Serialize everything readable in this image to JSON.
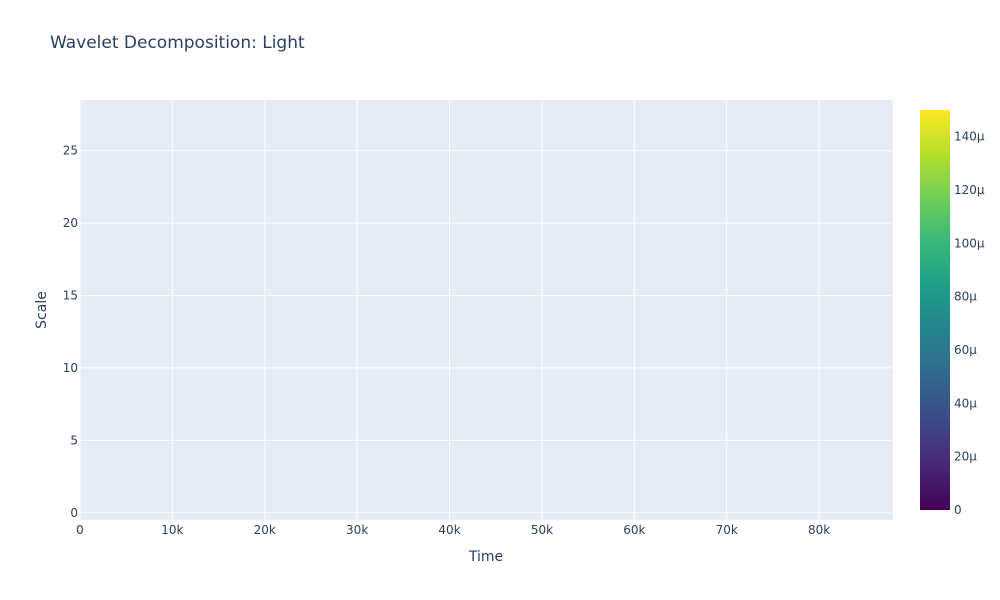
{
  "chart_data": {
    "type": "heatmap",
    "title": "Wavelet Decomposition: Light",
    "xlabel": "Time",
    "ylabel": "Scale",
    "x_ticks": [
      {
        "value": 0,
        "label": "0"
      },
      {
        "value": 10000,
        "label": "10k"
      },
      {
        "value": 20000,
        "label": "20k"
      },
      {
        "value": 30000,
        "label": "30k"
      },
      {
        "value": 40000,
        "label": "40k"
      },
      {
        "value": 50000,
        "label": "50k"
      },
      {
        "value": 60000,
        "label": "60k"
      },
      {
        "value": 70000,
        "label": "70k"
      },
      {
        "value": 80000,
        "label": "80k"
      }
    ],
    "y_ticks": [
      {
        "value": 0,
        "label": "0"
      },
      {
        "value": 5,
        "label": "5"
      },
      {
        "value": 10,
        "label": "10"
      },
      {
        "value": 15,
        "label": "15"
      },
      {
        "value": 20,
        "label": "20"
      },
      {
        "value": 25,
        "label": "25"
      }
    ],
    "xlim": [
      0,
      88000
    ],
    "ylim": [
      -0.5,
      28.5
    ],
    "colorscale": "viridis",
    "colorscale_stops": [
      "#440154",
      "#482878",
      "#3e4989",
      "#31688e",
      "#26828e",
      "#1f9e89",
      "#35b779",
      "#6ece58",
      "#b5de2b",
      "#fde725"
    ],
    "colorbar_range": [
      0,
      0.00015
    ],
    "colorbar_ticks": [
      {
        "value": 0,
        "label": "0"
      },
      {
        "value": 2e-05,
        "label": "20µ"
      },
      {
        "value": 4e-05,
        "label": "40µ"
      },
      {
        "value": 6e-05,
        "label": "60µ"
      },
      {
        "value": 8e-05,
        "label": "80µ"
      },
      {
        "value": 0.0001,
        "label": "100µ"
      },
      {
        "value": 0.00012,
        "label": "120µ"
      },
      {
        "value": 0.00014,
        "label": "140µ"
      }
    ],
    "grid": true,
    "plot_background": "#e5ecf6",
    "grid_color": "#ffffff"
  }
}
